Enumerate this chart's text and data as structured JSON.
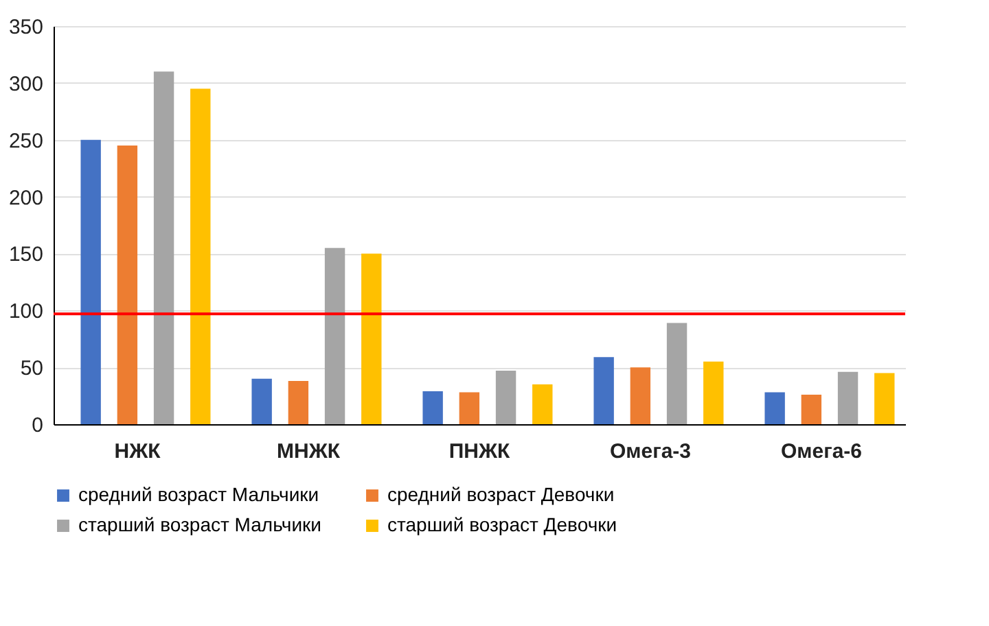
{
  "chart_data": {
    "type": "bar",
    "categories": [
      "НЖК",
      "МНЖК",
      "ПНЖК",
      "Омега-3",
      "Омега-6"
    ],
    "series": [
      {
        "name": "средний возраст Мальчики",
        "color": "#4472c4",
        "values": [
          250,
          40,
          29,
          59,
          28
        ]
      },
      {
        "name": "средний возраст Девочки",
        "color": "#ed7d31",
        "values": [
          245,
          38,
          28,
          50,
          26
        ]
      },
      {
        "name": "старший возраст Мальчики",
        "color": "#a5a5a5",
        "values": [
          310,
          155,
          47,
          89,
          46
        ]
      },
      {
        "name": "старший возраст Девочки",
        "color": "#ffc000",
        "values": [
          295,
          150,
          35,
          55,
          45
        ]
      }
    ],
    "ylim": [
      0,
      350
    ],
    "yticks": [
      0,
      50,
      100,
      150,
      200,
      250,
      300,
      350
    ],
    "grid": "y",
    "legend": "bottom",
    "ref_lines": [
      {
        "axis": "y",
        "value": 97,
        "color": "#ff0000"
      }
    ]
  }
}
